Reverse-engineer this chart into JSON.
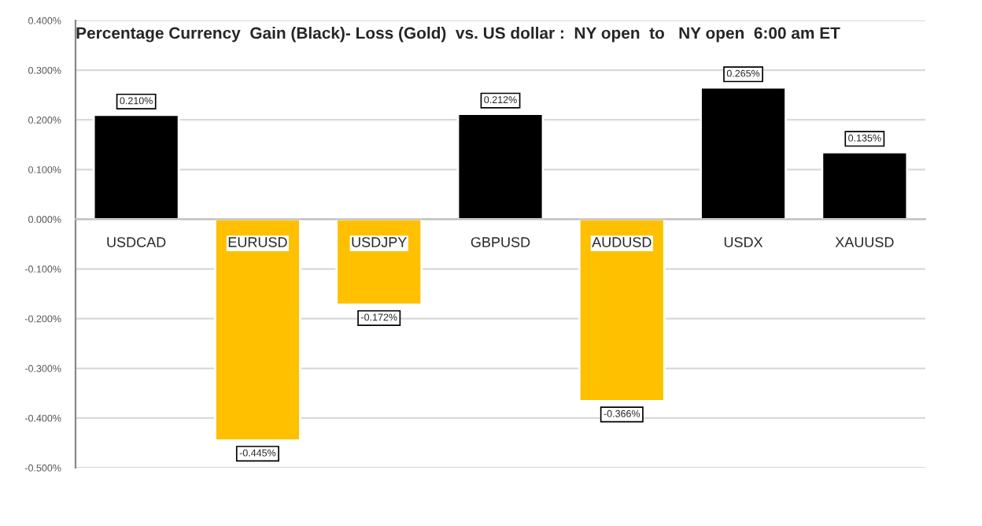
{
  "chart_data": {
    "type": "bar",
    "title": "Percentage Currency  Gain (Black)- Loss (Gold)  vs. US dollar :  NY open  to   NY open  6:00 am ET",
    "categories": [
      "USDCAD",
      "EURUSD",
      "USDJPY",
      "GBPUSD",
      "AUDUSD",
      "USDX",
      "XAUUSD"
    ],
    "values": [
      0.21,
      -0.445,
      -0.172,
      0.212,
      -0.366,
      0.265,
      0.135
    ],
    "colors": [
      "#000000",
      "#ffc000",
      "#ffc000",
      "#000000",
      "#ffc000",
      "#000000",
      "#000000"
    ],
    "value_labels": [
      "0.210%",
      "-0.445%",
      "-0.172%",
      "0.212%",
      "-0.366%",
      "0.265%",
      "0.135%"
    ],
    "ylim": [
      -0.5,
      0.4
    ],
    "yticks": [
      {
        "value": -0.5,
        "label": "-0.500%"
      },
      {
        "value": -0.4,
        "label": "-0.400%"
      },
      {
        "value": -0.3,
        "label": "-0.300%"
      },
      {
        "value": -0.2,
        "label": "-0.200%"
      },
      {
        "value": -0.1,
        "label": "-0.100%"
      },
      {
        "value": 0,
        "label": "0.000%"
      },
      {
        "value": 0.1,
        "label": "0.100%"
      },
      {
        "value": 0.2,
        "label": "0.200%"
      },
      {
        "value": 0.3,
        "label": "0.300%"
      },
      {
        "value": 0.4,
        "label": "0.400%"
      }
    ],
    "grid": "y",
    "legend": false
  }
}
